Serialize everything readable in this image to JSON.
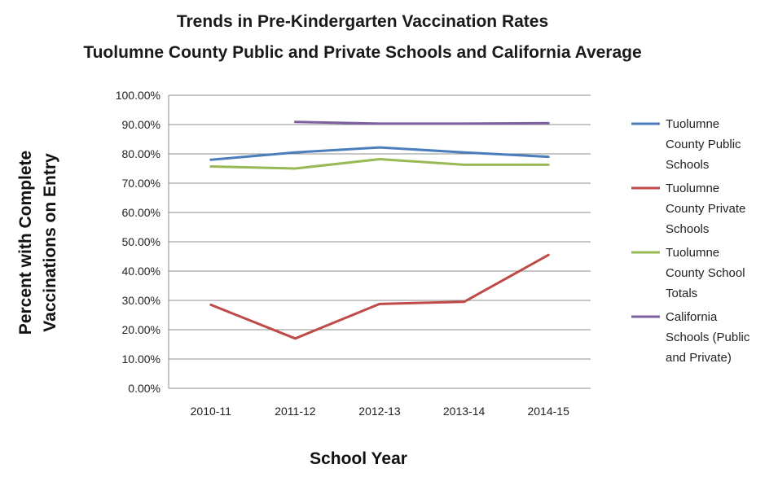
{
  "chart_data": {
    "type": "line",
    "title_lines": [
      "Trends in Pre-Kindergarten Vaccination Rates",
      "Tuolumne County Public and Private Schools and California Average"
    ],
    "xlabel": "School Year",
    "ylabel_lines": [
      "Percent with Complete",
      "Vaccinations on Entry"
    ],
    "categories": [
      "2010-11",
      "2011-12",
      "2012-13",
      "2013-14",
      "2014-15"
    ],
    "ylim": [
      0,
      100
    ],
    "yticks": [
      0,
      10,
      20,
      30,
      40,
      50,
      60,
      70,
      80,
      90,
      100
    ],
    "ytick_labels": [
      "0.00%",
      "10.00%",
      "20.00%",
      "30.00%",
      "40.00%",
      "50.00%",
      "60.00%",
      "70.00%",
      "80.00%",
      "90.00%",
      "100.00%"
    ],
    "grid": true,
    "legend_position": "right",
    "series": [
      {
        "name_lines": [
          "Tuolumne",
          "County Public",
          "Schools"
        ],
        "color": "#4a7ebb",
        "values": [
          78,
          80.5,
          82.2,
          80.5,
          79
        ]
      },
      {
        "name_lines": [
          "Tuolumne",
          "County Private",
          "Schools"
        ],
        "color": "#be4b48",
        "values": [
          28.5,
          17,
          28.8,
          29.5,
          45.5
        ]
      },
      {
        "name_lines": [
          "Tuolumne",
          "County School",
          "Totals"
        ],
        "color": "#98b954",
        "values": [
          75.7,
          75,
          78.2,
          76.3,
          76.3
        ]
      },
      {
        "name_lines": [
          "California",
          "Schools (Public",
          "and Private)"
        ],
        "color": "#7d60a0",
        "values": [
          null,
          90.9,
          90.3,
          90.3,
          90.5
        ]
      }
    ]
  }
}
